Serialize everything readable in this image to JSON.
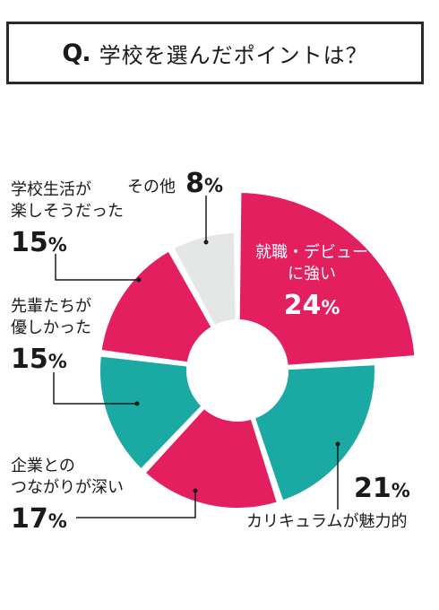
{
  "header": {
    "q_mark": "Q.",
    "question": "学校を選んだポイントは？"
  },
  "colors": {
    "pink": "#e41f5f",
    "teal": "#1ba9a3",
    "gray": "#e5e6e6",
    "line": "#1a1a1a"
  },
  "chart_data": {
    "type": "pie",
    "title": "学校を選んだポイントは？",
    "unit": "%",
    "slices": [
      {
        "label_lines": [
          "就職・デビュー",
          "に強い"
        ],
        "value": 24,
        "color": "pink"
      },
      {
        "label_lines": [
          "カリキュラムが魅力的"
        ],
        "value": 21,
        "color": "teal"
      },
      {
        "label_lines": [
          "企業との",
          "つながりが深い"
        ],
        "value": 17,
        "color": "pink"
      },
      {
        "label_lines": [
          "先輩たちが",
          "優しかった"
        ],
        "value": 15,
        "color": "teal"
      },
      {
        "label_lines": [
          "学校生活が",
          "楽しそうだった"
        ],
        "value": 15,
        "color": "pink"
      },
      {
        "label_lines": [
          "その他"
        ],
        "value": 8,
        "color": "gray"
      }
    ]
  }
}
